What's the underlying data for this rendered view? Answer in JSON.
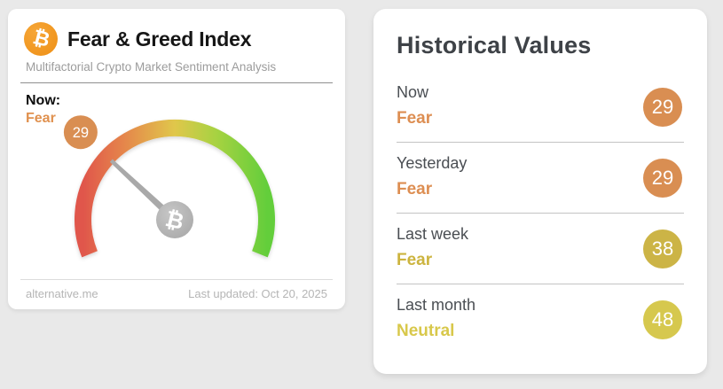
{
  "page": {
    "background": "#e9e9e9"
  },
  "index_card": {
    "title": "Fear & Greed Index",
    "subtitle": "Multifactorial Crypto Market Sentiment Analysis",
    "now_label": "Now:",
    "now_sentiment": "Fear",
    "now_value": "29",
    "bitcoin_symbol": "₿",
    "footer_source": "alternative.me",
    "footer_updated": "Last updated: Oct 20, 2025"
  },
  "historical_card": {
    "title": "Historical Values",
    "rows": [
      {
        "label": "Now",
        "sentiment": "Fear",
        "value": "29",
        "tone": "orange"
      },
      {
        "label": "Yesterday",
        "sentiment": "Fear",
        "value": "29",
        "tone": "orange"
      },
      {
        "label": "Last week",
        "sentiment": "Fear",
        "value": "38",
        "tone": "gold"
      },
      {
        "label": "Last month",
        "sentiment": "Neutral",
        "value": "48",
        "tone": "yellow"
      }
    ]
  },
  "colors": {
    "fear_orange": "#d98e52",
    "gold": "#ccb446",
    "neutral_yellow": "#d6c84e",
    "bitcoin_orange": "#f0921e",
    "needle_gray": "#a9a9a9",
    "gauge_gradient": [
      "#e0564b",
      "#e5854c",
      "#e0c74b",
      "#a8d242",
      "#64ce3b"
    ]
  },
  "chart_data": {
    "type": "gauge",
    "title": "Fear & Greed Index",
    "value": 29,
    "classification": "Fear",
    "range": [
      0,
      100
    ],
    "gauge_start_deg": 202,
    "gauge_sweep_deg": 224,
    "scale": "red/orange (0 = extreme fear) through yellow (50 = neutral) to green (100 = extreme greed)",
    "historical": [
      {
        "label": "Now",
        "value": 29,
        "classification": "Fear"
      },
      {
        "label": "Yesterday",
        "value": 29,
        "classification": "Fear"
      },
      {
        "label": "Last week",
        "value": 38,
        "classification": "Fear"
      },
      {
        "label": "Last month",
        "value": 48,
        "classification": "Neutral"
      }
    ]
  }
}
